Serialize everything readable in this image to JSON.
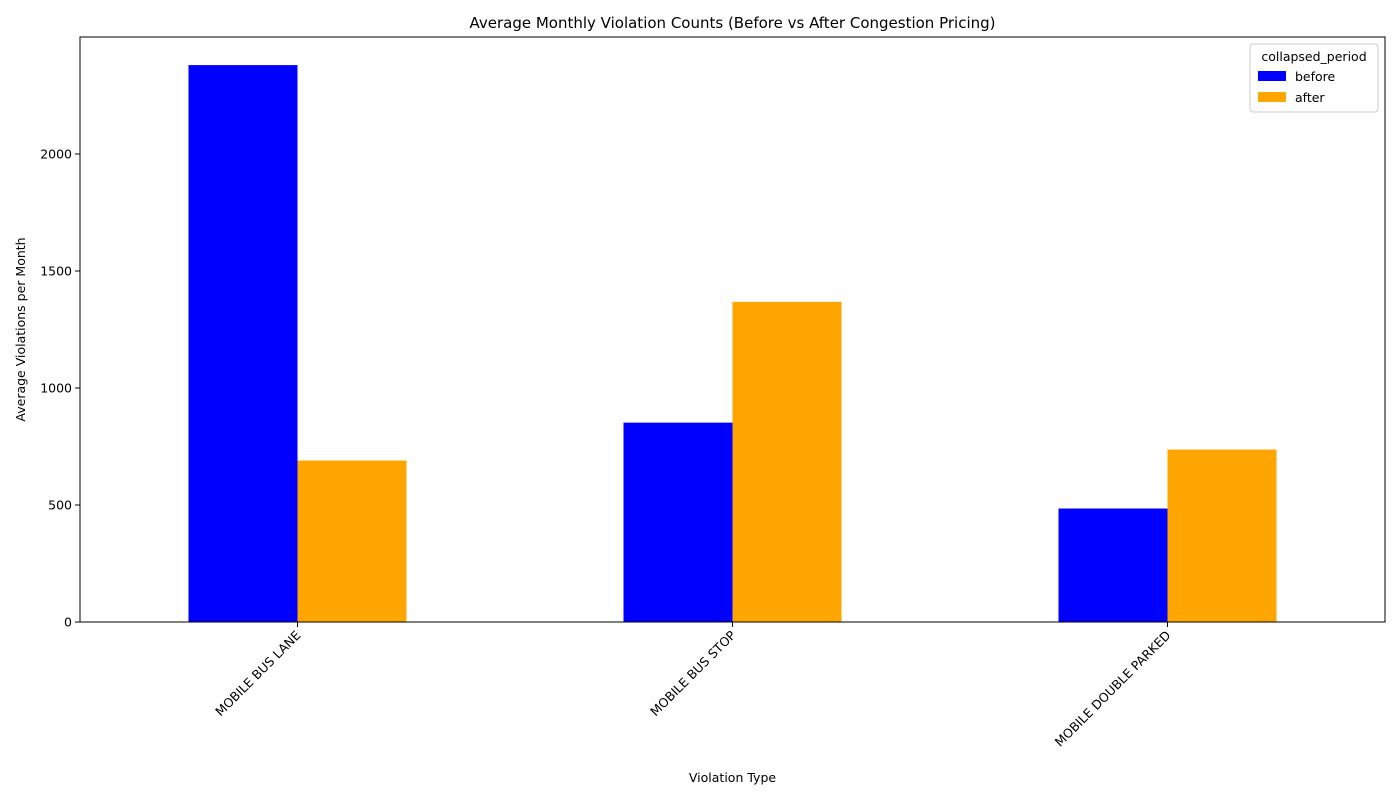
{
  "chart_data": {
    "type": "bar",
    "title": "Average Monthly Violation Counts (Before vs After Congestion Pricing)",
    "xlabel": "Violation Type",
    "ylabel": "Average Violations per Month",
    "categories": [
      "MOBILE BUS LANE",
      "MOBILE BUS STOP",
      "MOBILE DOUBLE PARKED"
    ],
    "series": [
      {
        "name": "before",
        "color": "#0000ff",
        "values": [
          2380,
          852,
          485
        ]
      },
      {
        "name": "after",
        "color": "#ffa500",
        "values": [
          690,
          1368,
          737
        ]
      }
    ],
    "ylim": [
      0,
      2500
    ],
    "yticks": [
      0,
      500,
      1000,
      1500,
      2000
    ],
    "legend": {
      "title": "collapsed_period",
      "placement": "top-right"
    },
    "grid": false
  }
}
